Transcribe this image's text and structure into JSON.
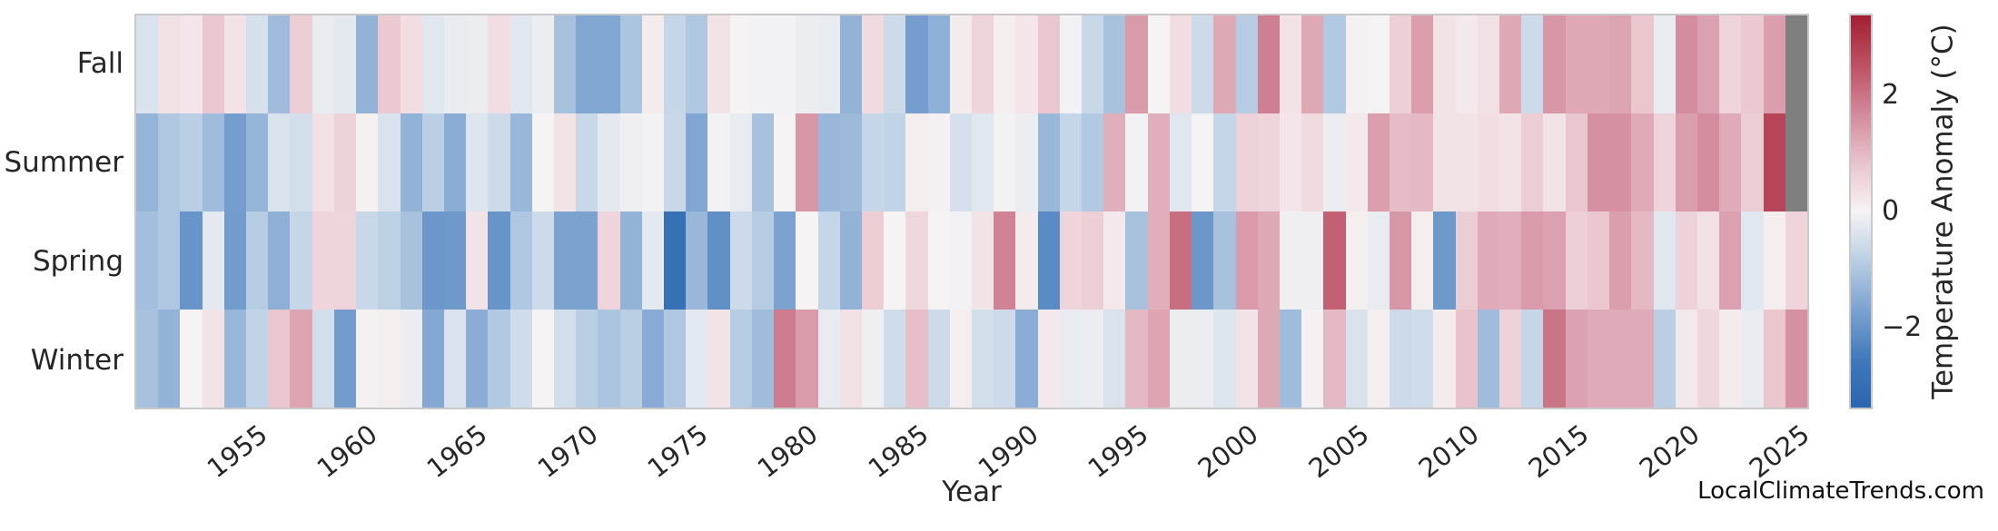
{
  "figure": {
    "watermark": "LocalClimateTrends.com"
  },
  "chart_data": {
    "type": "heatmap",
    "title": "",
    "xlabel": "Year",
    "ylabel": "",
    "legend": "none",
    "grid": false,
    "rows": [
      "Fall",
      "Summer",
      "Spring",
      "Winter"
    ],
    "x": [
      1950,
      1951,
      1952,
      1953,
      1954,
      1955,
      1956,
      1957,
      1958,
      1959,
      1960,
      1961,
      1962,
      1963,
      1964,
      1965,
      1966,
      1967,
      1968,
      1969,
      1970,
      1971,
      1972,
      1973,
      1974,
      1975,
      1976,
      1977,
      1978,
      1979,
      1980,
      1981,
      1982,
      1983,
      1984,
      1985,
      1986,
      1987,
      1988,
      1989,
      1990,
      1991,
      1992,
      1993,
      1994,
      1995,
      1996,
      1997,
      1998,
      1999,
      2000,
      2001,
      2002,
      2003,
      2004,
      2005,
      2006,
      2007,
      2008,
      2009,
      2010,
      2011,
      2012,
      2013,
      2014,
      2015,
      2016,
      2017,
      2018,
      2019,
      2020,
      2021,
      2022,
      2023,
      2024,
      2025
    ],
    "xticks": [
      1955,
      1960,
      1965,
      1970,
      1975,
      1980,
      1985,
      1990,
      1995,
      2000,
      2005,
      2010,
      2015,
      2020,
      2025
    ],
    "series": [
      {
        "name": "Fall",
        "values": [
          -0.4,
          0.35,
          0.25,
          0.8,
          0.3,
          -0.45,
          -1.2,
          0.7,
          -0.2,
          -0.25,
          -1.4,
          0.75,
          0.4,
          -0.3,
          -0.2,
          -0.15,
          0.4,
          -0.3,
          -0.15,
          -1.1,
          -1.65,
          -1.65,
          -1.05,
          0.15,
          -0.7,
          -1.0,
          0.3,
          0.0,
          -0.05,
          -0.05,
          -0.15,
          -0.2,
          -1.4,
          0.45,
          -0.6,
          -1.8,
          -1.45,
          0.15,
          0.55,
          0.1,
          0.25,
          0.8,
          -0.05,
          -0.65,
          -1.1,
          1.45,
          0.0,
          0.4,
          -0.6,
          1.25,
          -0.9,
          1.85,
          0.3,
          1.25,
          -0.95,
          0.05,
          0.0,
          0.65,
          1.4,
          0.3,
          0.2,
          0.35,
          1.25,
          -0.6,
          1.5,
          1.25,
          1.25,
          1.3,
          0.8,
          -0.2,
          1.65,
          1.35,
          0.55,
          0.75,
          1.4,
          null
        ]
      },
      {
        "name": "Summer",
        "values": [
          -1.35,
          -1.0,
          -0.85,
          -1.2,
          -1.8,
          -1.35,
          -0.4,
          -0.5,
          0.35,
          0.6,
          0.05,
          -0.4,
          -1.4,
          -0.85,
          -1.5,
          -0.35,
          -0.6,
          -1.3,
          0.0,
          0.3,
          -0.65,
          -0.25,
          -0.1,
          -0.05,
          -0.65,
          -1.65,
          -0.05,
          -0.2,
          -1.1,
          0.0,
          1.5,
          -1.3,
          -1.25,
          -0.7,
          -0.75,
          0.1,
          0.05,
          -0.45,
          -0.3,
          -0.05,
          -0.15,
          -1.3,
          -0.7,
          -0.95,
          1.15,
          -0.05,
          1.15,
          -0.3,
          0.0,
          -0.7,
          0.6,
          0.55,
          0.25,
          0.45,
          -0.15,
          0.2,
          1.4,
          0.95,
          1.0,
          0.3,
          0.3,
          0.4,
          0.3,
          0.7,
          0.3,
          0.8,
          1.6,
          1.6,
          1.2,
          0.55,
          1.4,
          1.65,
          1.2,
          0.7,
          2.75,
          null
        ]
      },
      {
        "name": "Spring",
        "values": [
          -1.15,
          -1.0,
          -2.0,
          -0.25,
          -1.85,
          -0.9,
          -1.45,
          -0.7,
          0.55,
          0.55,
          -0.65,
          -0.8,
          -1.1,
          -1.95,
          -1.9,
          0.3,
          -2.0,
          -1.0,
          -0.6,
          -1.7,
          -1.7,
          0.55,
          -1.4,
          -0.25,
          -2.9,
          -1.3,
          -2.1,
          -0.6,
          -0.9,
          -1.7,
          0.0,
          -0.7,
          -1.4,
          0.7,
          0.0,
          0.5,
          0.0,
          -0.05,
          0.3,
          1.8,
          0.15,
          -2.2,
          0.55,
          0.65,
          0.2,
          -1.1,
          1.15,
          2.1,
          -1.95,
          -1.1,
          1.45,
          1.25,
          -0.1,
          -0.1,
          2.3,
          0.1,
          -0.2,
          1.5,
          0.1,
          -1.9,
          0.7,
          1.2,
          1.15,
          1.45,
          1.35,
          0.65,
          0.8,
          1.4,
          1.0,
          -0.3,
          0.6,
          0.35,
          1.35,
          -0.3,
          0.1,
          0.55
        ]
      },
      {
        "name": "Winter",
        "values": [
          -1.1,
          -1.4,
          0.0,
          0.3,
          -1.3,
          -0.75,
          0.8,
          1.3,
          -0.5,
          -1.85,
          0.05,
          0.1,
          -0.15,
          -1.6,
          -0.4,
          -1.5,
          -0.95,
          -0.55,
          0.0,
          -0.5,
          -0.85,
          -1.05,
          -0.85,
          -1.55,
          -1.0,
          -0.25,
          0.3,
          -0.9,
          -1.2,
          1.9,
          1.45,
          -0.2,
          0.35,
          -0.1,
          -0.55,
          0.9,
          -0.6,
          0.1,
          -0.5,
          -0.6,
          -1.5,
          0.2,
          -0.2,
          -0.15,
          -0.4,
          1.0,
          1.3,
          -0.15,
          -0.15,
          -0.35,
          0.3,
          1.25,
          -1.2,
          0.05,
          1.0,
          -0.4,
          0.1,
          -0.6,
          -0.55,
          0.15,
          0.85,
          -1.2,
          0.6,
          -0.7,
          2.0,
          1.35,
          1.2,
          1.2,
          1.2,
          -0.85,
          0.2,
          0.5,
          0.15,
          -0.2,
          0.8,
          1.6
        ]
      }
    ],
    "colorbar": {
      "label": "Temperature Anomaly (°C)",
      "tick_values": [
        2,
        0,
        -2
      ],
      "tick_labels": [
        "2",
        "0",
        "−2"
      ],
      "vmin": -3.4,
      "vmax": 3.4
    },
    "colors": {
      "nan_color": "#7f7f7f",
      "border_color": "#c9c9c9",
      "colormap_stops": [
        [
          0.0,
          "#2a66ae"
        ],
        [
          0.12,
          "#3f78ba"
        ],
        [
          0.25,
          "#7ca3d0"
        ],
        [
          0.4,
          "#c6d7e8"
        ],
        [
          0.5,
          "#f6f3f4"
        ],
        [
          0.6,
          "#edced5"
        ],
        [
          0.75,
          "#d28a9c"
        ],
        [
          0.85,
          "#c05b6d"
        ],
        [
          1.0,
          "#a21e31"
        ]
      ]
    }
  }
}
